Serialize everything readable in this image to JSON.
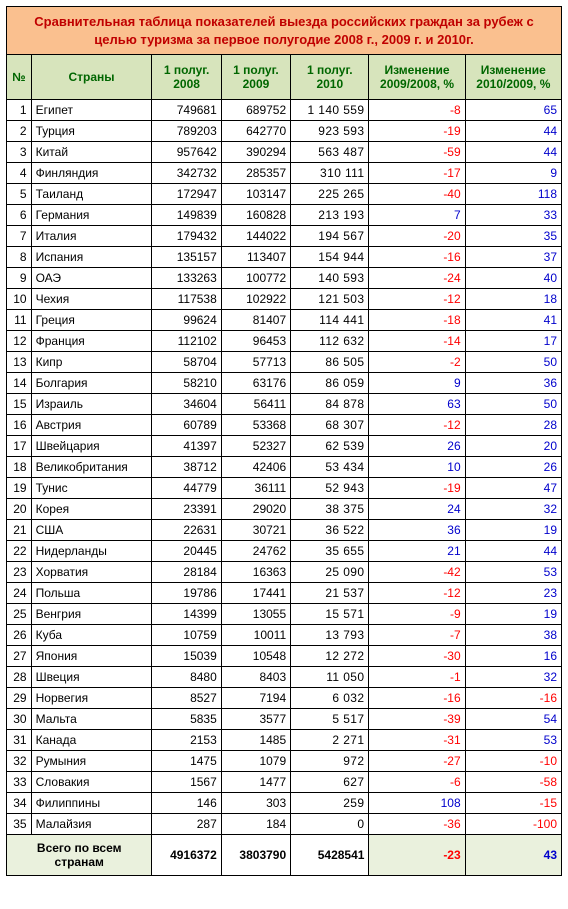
{
  "title": "Сравнительная таблица показателей выезда российских граждан за рубеж с целью туризма за первое полугодие 2008 г., 2009 г. и 2010г.",
  "columns": {
    "num": "№",
    "country": "Страны",
    "y2008": "1 полуг. 2008",
    "y2009": "1 полуг. 2009",
    "y2010": "1 полуг. 2010",
    "chg0908": "Изменение 2009/2008, %",
    "chg1009": "Изменение 2010/2009, %"
  },
  "rows": [
    {
      "n": "1",
      "c": "Египет",
      "a": "749681",
      "b": "689752",
      "d": "1 140 559",
      "e": -8,
      "f": 65
    },
    {
      "n": "2",
      "c": "Турция",
      "a": "789203",
      "b": "642770",
      "d": "923 593",
      "e": -19,
      "f": 44
    },
    {
      "n": "3",
      "c": "Китай",
      "a": "957642",
      "b": "390294",
      "d": "563 487",
      "e": -59,
      "f": 44
    },
    {
      "n": "4",
      "c": "Финляндия",
      "a": "342732",
      "b": "285357",
      "d": "310 111",
      "e": -17,
      "f": 9
    },
    {
      "n": "5",
      "c": "Таиланд",
      "a": "172947",
      "b": "103147",
      "d": "225 265",
      "e": -40,
      "f": 118
    },
    {
      "n": "6",
      "c": "Германия",
      "a": "149839",
      "b": "160828",
      "d": "213 193",
      "e": 7,
      "f": 33
    },
    {
      "n": "7",
      "c": "Италия",
      "a": "179432",
      "b": "144022",
      "d": "194 567",
      "e": -20,
      "f": 35
    },
    {
      "n": "8",
      "c": "Испания",
      "a": "135157",
      "b": "113407",
      "d": "154 944",
      "e": -16,
      "f": 37
    },
    {
      "n": "9",
      "c": "ОАЭ",
      "a": "133263",
      "b": "100772",
      "d": "140 593",
      "e": -24,
      "f": 40
    },
    {
      "n": "10",
      "c": "Чехия",
      "a": "117538",
      "b": "102922",
      "d": "121 503",
      "e": -12,
      "f": 18
    },
    {
      "n": "11",
      "c": "Греция",
      "a": "99624",
      "b": "81407",
      "d": "114 441",
      "e": -18,
      "f": 41
    },
    {
      "n": "12",
      "c": "Франция",
      "a": "112102",
      "b": "96453",
      "d": "112 632",
      "e": -14,
      "f": 17
    },
    {
      "n": "13",
      "c": "Кипр",
      "a": "58704",
      "b": "57713",
      "d": "86 505",
      "e": -2,
      "f": 50
    },
    {
      "n": "14",
      "c": "Болгария",
      "a": "58210",
      "b": "63176",
      "d": "86 059",
      "e": 9,
      "f": 36
    },
    {
      "n": "15",
      "c": "Израиль",
      "a": "34604",
      "b": "56411",
      "d": "84 878",
      "e": 63,
      "f": 50
    },
    {
      "n": "16",
      "c": "Австрия",
      "a": "60789",
      "b": "53368",
      "d": "68 307",
      "e": -12,
      "f": 28
    },
    {
      "n": "17",
      "c": "Швейцария",
      "a": "41397",
      "b": "52327",
      "d": "62 539",
      "e": 26,
      "f": 20
    },
    {
      "n": "18",
      "c": "Великобритания",
      "a": "38712",
      "b": "42406",
      "d": "53 434",
      "e": 10,
      "f": 26
    },
    {
      "n": "19",
      "c": "Тунис",
      "a": "44779",
      "b": "36111",
      "d": "52 943",
      "e": -19,
      "f": 47
    },
    {
      "n": "20",
      "c": "Корея",
      "a": "23391",
      "b": "29020",
      "d": "38 375",
      "e": 24,
      "f": 32
    },
    {
      "n": "21",
      "c": "США",
      "a": "22631",
      "b": "30721",
      "d": "36 522",
      "e": 36,
      "f": 19
    },
    {
      "n": "22",
      "c": "Нидерланды",
      "a": "20445",
      "b": "24762",
      "d": "35 655",
      "e": 21,
      "f": 44
    },
    {
      "n": "23",
      "c": "Хорватия",
      "a": "28184",
      "b": "16363",
      "d": "25 090",
      "e": -42,
      "f": 53
    },
    {
      "n": "24",
      "c": "Польша",
      "a": "19786",
      "b": "17441",
      "d": "21 537",
      "e": -12,
      "f": 23
    },
    {
      "n": "25",
      "c": "Венгрия",
      "a": "14399",
      "b": "13055",
      "d": "15 571",
      "e": -9,
      "f": 19
    },
    {
      "n": "26",
      "c": "Куба",
      "a": "10759",
      "b": "10011",
      "d": "13 793",
      "e": -7,
      "f": 38
    },
    {
      "n": "27",
      "c": "Япония",
      "a": "15039",
      "b": "10548",
      "d": "12 272",
      "e": -30,
      "f": 16
    },
    {
      "n": "28",
      "c": "Швеция",
      "a": "8480",
      "b": "8403",
      "d": "11 050",
      "e": -1,
      "f": 32
    },
    {
      "n": "29",
      "c": "Норвегия",
      "a": "8527",
      "b": "7194",
      "d": "6 032",
      "e": -16,
      "f": -16
    },
    {
      "n": "30",
      "c": "Мальта",
      "a": "5835",
      "b": "3577",
      "d": "5 517",
      "e": -39,
      "f": 54
    },
    {
      "n": "31",
      "c": "Канада",
      "a": "2153",
      "b": "1485",
      "d": "2 271",
      "e": -31,
      "f": 53
    },
    {
      "n": "32",
      "c": "Румыния",
      "a": "1475",
      "b": "1079",
      "d": "972",
      "e": -27,
      "f": -10
    },
    {
      "n": "33",
      "c": "Словакия",
      "a": "1567",
      "b": "1477",
      "d": "627",
      "e": -6,
      "f": -58
    },
    {
      "n": "34",
      "c": "Филиппины",
      "a": "146",
      "b": "303",
      "d": "259",
      "e": 108,
      "f": -15
    },
    {
      "n": "35",
      "c": "Малайзия",
      "a": "287",
      "b": "184",
      "d": "0",
      "e": -36,
      "f": -100
    }
  ],
  "total": {
    "label": "Всего по всем странам",
    "y2008": "4916372",
    "y2009": "3803790",
    "y2010": "5428541",
    "chg0908": -23,
    "chg1009": 43
  },
  "colors": {
    "title_bg": "#fac08f",
    "title_fg": "#c00000",
    "header_bg": "#d7e4bc",
    "header_fg": "#006600",
    "neg": "#ff0000",
    "pos": "#0000cc",
    "total_bg": "#eaf1dd"
  }
}
